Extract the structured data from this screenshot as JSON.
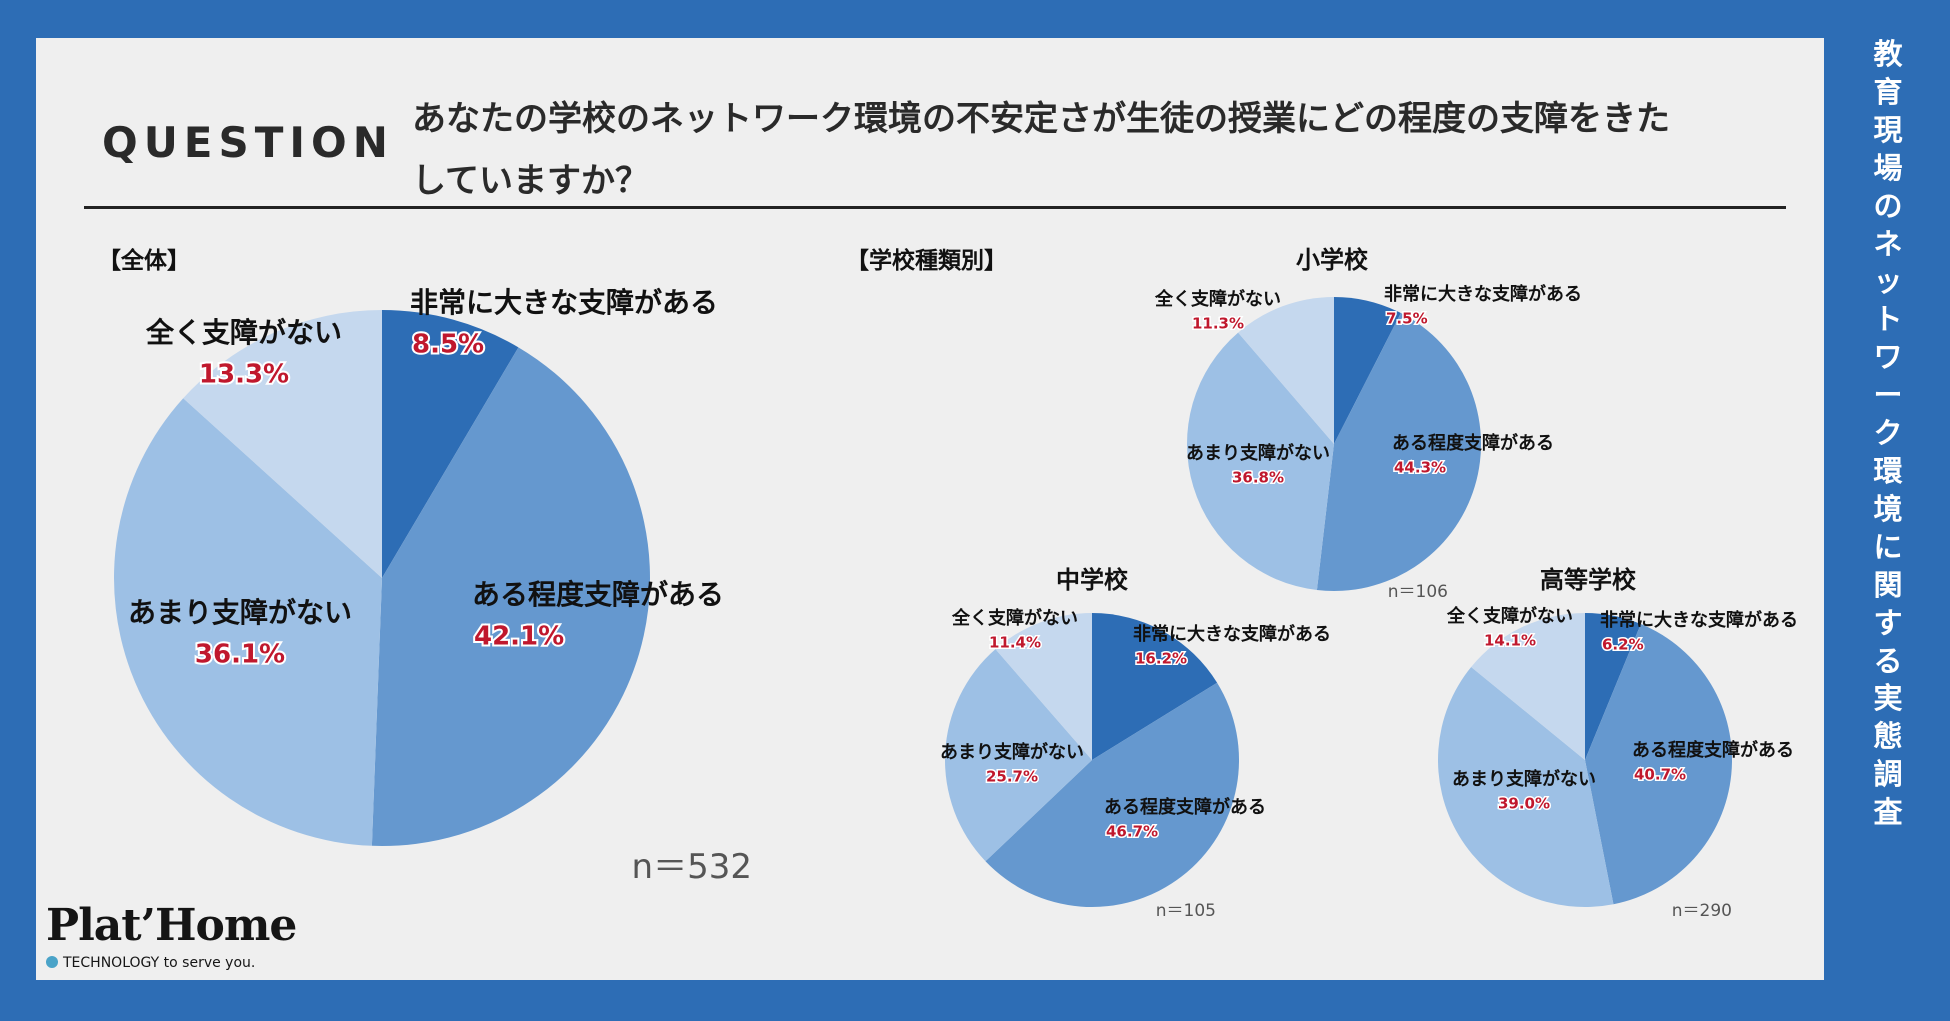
{
  "side_title": "教育現場のネットワーク環境に関する実態調査",
  "question": {
    "label": "QUESTION",
    "text": "あなたの学校のネットワーク環境の不安定さが生徒の授業にどの程度の支障をきたしていますか？"
  },
  "section_labels": {
    "overall": "【全体】",
    "by_school": "【学校種類別】"
  },
  "colors": {
    "very_large": "#2d6db5",
    "some": "#6598cf",
    "not_much": "#9dc0e5",
    "none": "#c5d8ee",
    "percent_text": "#c0182d",
    "label_text": "#111111"
  },
  "chart_data": [
    {
      "type": "pie",
      "id": "overall",
      "title": "",
      "categories": [
        "非常に大きな支障がある",
        "ある程度支障がある",
        "あまり支障がない",
        "全く支障がない"
      ],
      "values": [
        8.5,
        42.1,
        36.1,
        13.3
      ],
      "value_labels": [
        "8.5%",
        "42.1%",
        "36.1%",
        "13.3%"
      ],
      "n_label": "n＝532"
    },
    {
      "type": "pie",
      "id": "elementary",
      "title": "小学校",
      "categories": [
        "非常に大きな支障がある",
        "ある程度支障がある",
        "あまり支障がない",
        "全く支障がない"
      ],
      "values": [
        7.5,
        44.3,
        36.8,
        11.3
      ],
      "value_labels": [
        "7.5%",
        "44.3%",
        "36.8%",
        "11.3%"
      ],
      "n_label": "n＝106"
    },
    {
      "type": "pie",
      "id": "junior_high",
      "title": "中学校",
      "categories": [
        "非常に大きな支障がある",
        "ある程度支障がある",
        "あまり支障がない",
        "全く支障がない"
      ],
      "values": [
        16.2,
        46.7,
        25.7,
        11.4
      ],
      "value_labels": [
        "16.2%",
        "46.7%",
        "25.7%",
        "11.4%"
      ],
      "n_label": "n＝105"
    },
    {
      "type": "pie",
      "id": "high_school",
      "title": "高等学校",
      "categories": [
        "非常に大きな支障がある",
        "ある程度支障がある",
        "あまり支障がない",
        "全く支障がない"
      ],
      "values": [
        6.2,
        40.7,
        39.0,
        14.1
      ],
      "value_labels": [
        "6.2%",
        "40.7%",
        "39.0%",
        "14.1%"
      ],
      "n_label": "n＝290"
    }
  ],
  "logo": {
    "brand": "Plat’Home",
    "tagline": "TECHNOLOGY to serve you."
  }
}
